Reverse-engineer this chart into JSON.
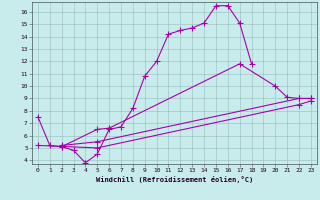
{
  "xlabel": "Windchill (Refroidissement éolien,°C)",
  "bg_color": "#c8ecec",
  "line_color": "#aa00aa",
  "grid_color": "#99bbbb",
  "xlim": [
    -0.5,
    23.5
  ],
  "ylim": [
    3.7,
    16.8
  ],
  "yticks": [
    4,
    5,
    6,
    7,
    8,
    9,
    10,
    11,
    12,
    13,
    14,
    15,
    16
  ],
  "xticks": [
    0,
    1,
    2,
    3,
    4,
    5,
    6,
    7,
    8,
    9,
    10,
    11,
    12,
    13,
    14,
    15,
    16,
    17,
    18,
    19,
    20,
    21,
    22,
    23
  ],
  "line1_x": [
    0,
    1,
    2,
    3,
    4,
    5,
    6,
    7,
    8,
    9,
    10,
    11,
    12,
    13,
    14,
    15,
    16,
    17,
    18
  ],
  "line1_y": [
    7.5,
    5.2,
    5.1,
    4.8,
    3.8,
    4.5,
    6.5,
    6.7,
    8.2,
    10.8,
    12.0,
    14.2,
    14.5,
    14.7,
    15.1,
    16.5,
    16.5,
    15.1,
    11.8
  ],
  "line2_x": [
    2,
    5,
    6,
    17,
    20,
    21,
    22,
    23
  ],
  "line2_y": [
    5.1,
    6.5,
    6.6,
    11.8,
    10.0,
    9.1,
    9.0,
    9.0
  ],
  "line3_x": [
    2,
    5,
    22,
    23
  ],
  "line3_y": [
    5.2,
    5.5,
    9.0,
    9.0
  ],
  "line4_x": [
    0,
    5,
    22,
    23
  ],
  "line4_y": [
    5.2,
    5.0,
    8.5,
    8.8
  ]
}
